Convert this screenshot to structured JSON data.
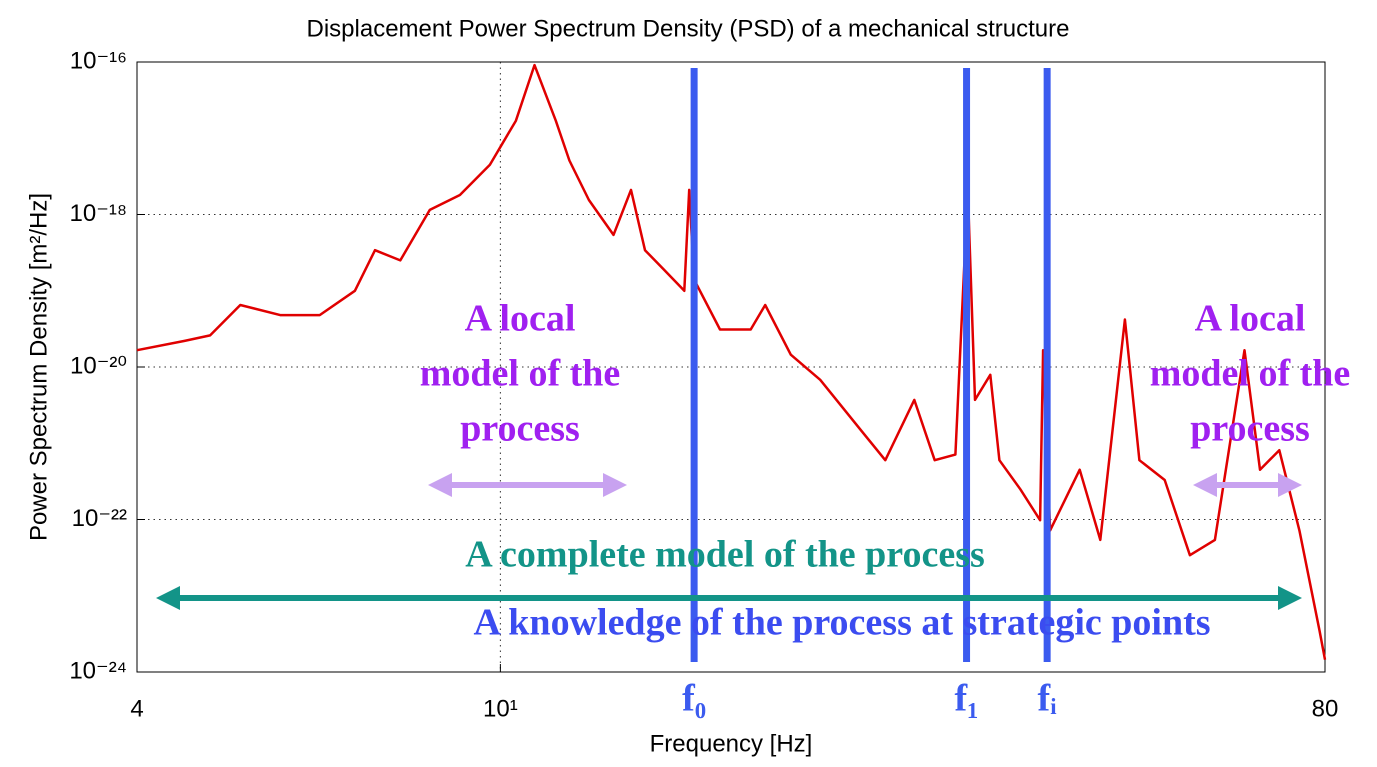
{
  "chart_data": {
    "type": "line",
    "title": "Displacement Power Spectrum Density (PSD) of a mechanical structure",
    "x_label": "Frequency [Hz]",
    "y_label": "Power Spectrum Density [m²/Hz]",
    "xscale": "log",
    "yscale": "log",
    "xlim": [
      4,
      80
    ],
    "ylim": [
      1e-24,
      1e-16
    ],
    "xticks": [
      4,
      {
        "value": 10,
        "label": "10¹"
      },
      80
    ],
    "yticks": [
      {
        "value": 1e-16,
        "label": "10⁻¹⁶"
      },
      {
        "value": 1e-18,
        "label": "10⁻¹⁸"
      },
      {
        "value": 1e-20,
        "label": "10⁻²⁰"
      },
      {
        "value": 1e-22,
        "label": "10⁻²²"
      },
      {
        "value": 1e-24,
        "label": "10⁻²⁴"
      }
    ],
    "grid": true,
    "series": [
      {
        "color": "#e00000",
        "x": [
          4,
          4.51,
          4.81,
          5.19,
          5.74,
          6.34,
          6.93,
          7.29,
          7.77,
          8.37,
          9.03,
          9.74,
          10.4,
          10.9,
          11.5,
          11.9,
          12.5,
          13.3,
          13.9,
          14.4,
          15.1,
          15.9,
          16.1,
          16.3,
          17.4,
          18.8,
          19.5,
          20.8,
          22.4,
          24.8,
          26.4,
          28.4,
          29.9,
          31.5,
          32.5,
          33.1,
          34.4,
          35.2,
          37.1,
          39.0,
          39.3,
          40.0,
          43.1,
          45.4,
          48.3,
          50.1,
          53.4,
          56.9,
          60.6,
          65.3,
          67.9,
          71.3,
          75.0,
          78.9,
          80
        ],
        "values": [
          1.66e-20,
          2.2e-20,
          2.6e-20,
          6.5e-20,
          4.8e-20,
          4.8e-20,
          1e-19,
          3.4e-19,
          2.5e-19,
          1.15e-18,
          1.8e-18,
          4.5e-18,
          1.7e-17,
          9.1e-17,
          1.7e-17,
          5.1e-18,
          1.55e-18,
          5.4e-19,
          2.1e-18,
          3.4e-19,
          1.9e-19,
          1e-19,
          2.1e-18,
          1.4e-19,
          3.1e-20,
          3.1e-20,
          6.5e-20,
          1.45e-20,
          6.8e-21,
          1.5e-21,
          6e-22,
          3.7e-21,
          6e-22,
          7.1e-22,
          2.1e-18,
          3.7e-21,
          7.9e-21,
          6e-22,
          2.5e-22,
          9.8e-23,
          1.66e-20,
          7.2e-23,
          4.5e-22,
          5.4e-23,
          4.2e-20,
          6e-22,
          3.3e-22,
          3.4e-23,
          5.4e-23,
          1.66e-20,
          4.5e-22,
          8.1e-22,
          7.2e-23,
          3.5e-24,
          1.45e-24
        ]
      }
    ],
    "markers": [
      {
        "label": "f₀",
        "x": 16.3
      },
      {
        "label": "f₁",
        "x": 32.4
      },
      {
        "label": "fᵢ",
        "x": 39.7
      }
    ],
    "annotations": [
      {
        "lines": [
          "A local",
          "model of the",
          "process"
        ]
      },
      {
        "lines": [
          "A local",
          "model of the",
          "process"
        ]
      },
      {
        "lines": [
          "A complete model of the process"
        ]
      },
      {
        "lines": [
          "A knowledge of the process at strategic points"
        ]
      }
    ]
  }
}
